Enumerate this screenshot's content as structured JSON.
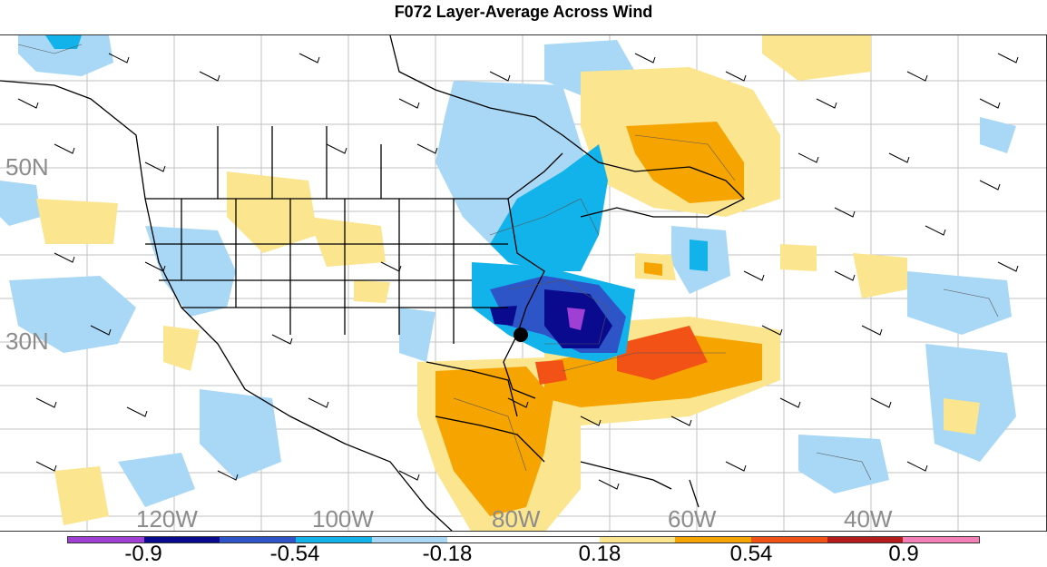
{
  "title": "F072 Layer-Average Across Wind",
  "lat_labels": [
    "50N",
    "30N"
  ],
  "lon_labels": [
    "120W",
    "100W",
    "80W",
    "60W",
    "40W"
  ],
  "colorbar": {
    "colors": [
      "#9f3fd4",
      "#0a0a8f",
      "#2e55c8",
      "#12b3eb",
      "#a8d8f5",
      "#ffffff",
      "#ffffff",
      "#fbe58f",
      "#f6a400",
      "#f25215",
      "#b51c1c",
      "#f27fb5"
    ],
    "tick_labels": [
      "-0.9",
      "-0.54",
      "-0.18",
      "0.18",
      "0.54",
      "0.9"
    ]
  },
  "marker": "storm-center-dot"
}
